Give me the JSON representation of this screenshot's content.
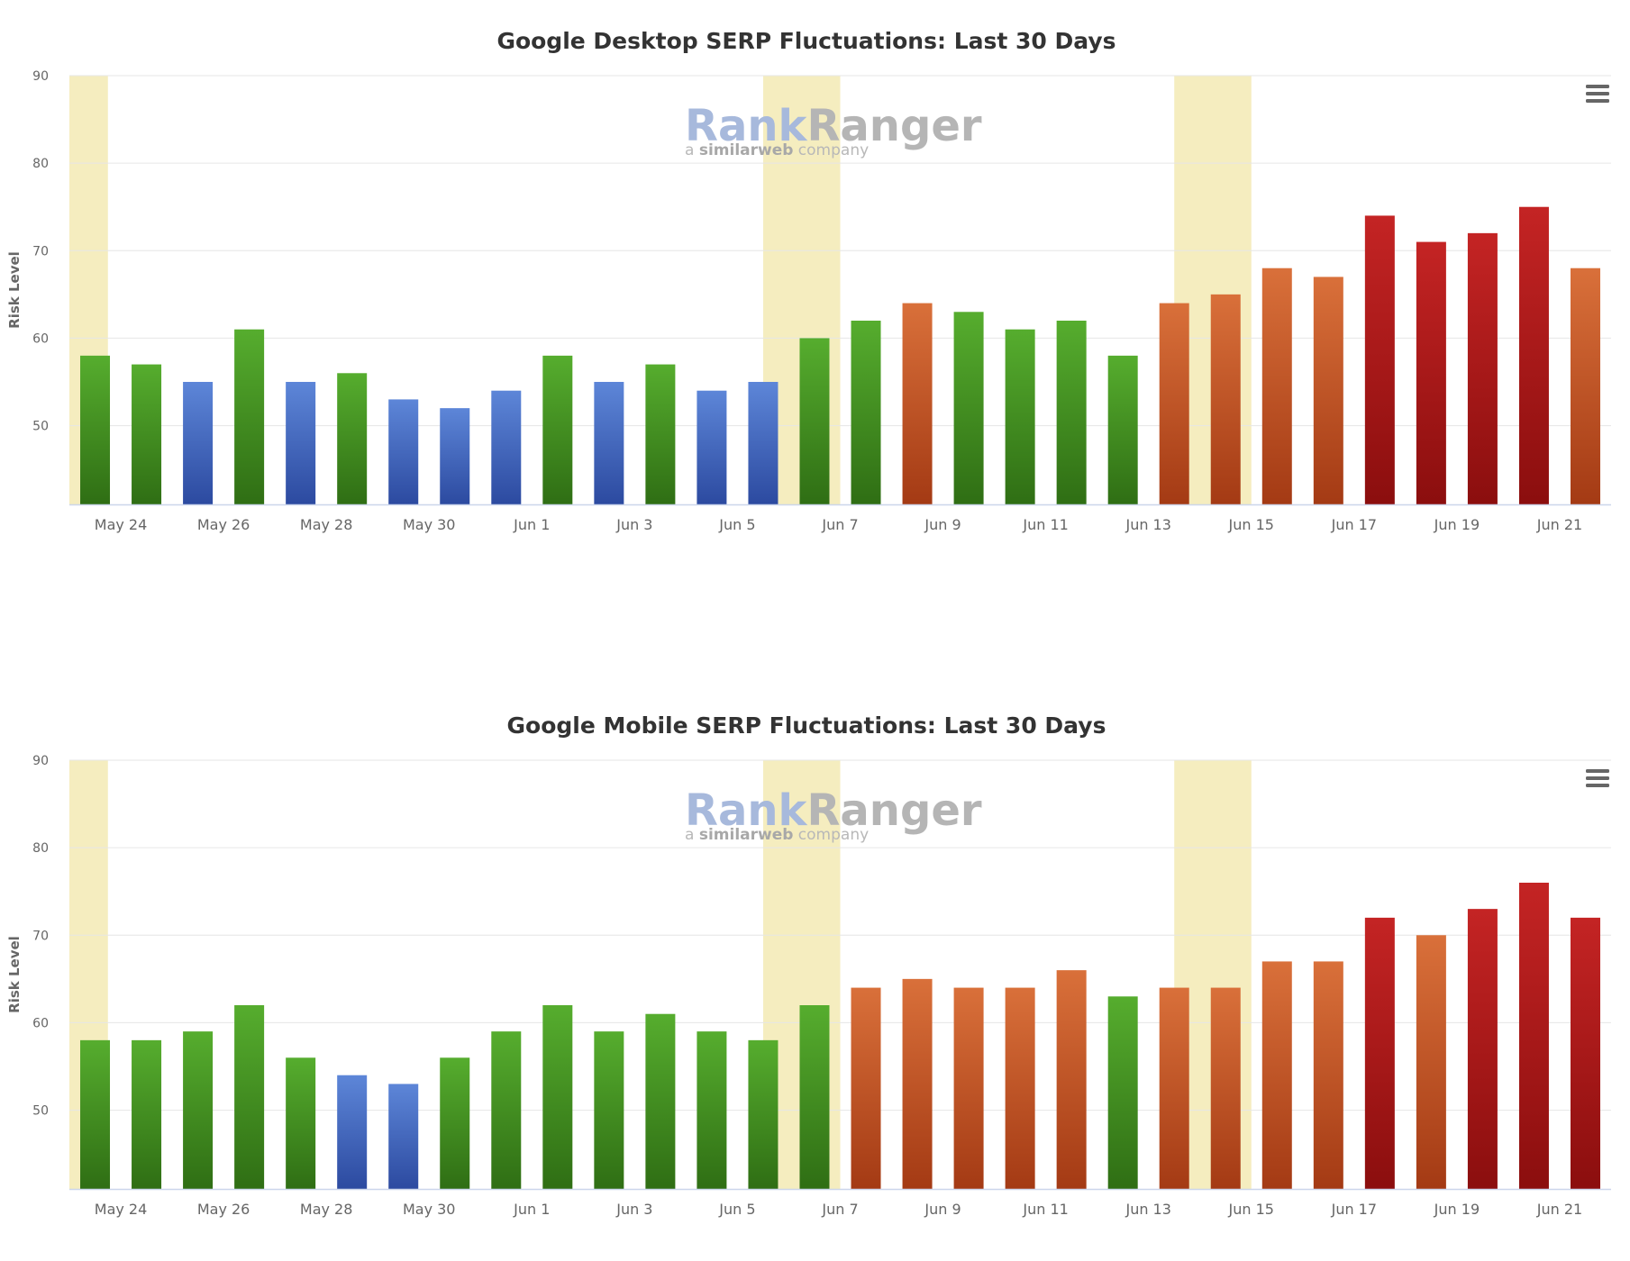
{
  "watermark": {
    "brand_left": "Rank",
    "brand_right": "Ranger",
    "tagline_prefix": "a ",
    "tagline_brand": "similarweb",
    "tagline_suffix": " company"
  },
  "colors": {
    "band": "#f5edbf",
    "grid": "#e6e6e6",
    "green": [
      "#56ad2e",
      "#2f6e14"
    ],
    "blue": [
      "#5d86d8",
      "#2c4aa0"
    ],
    "orange": [
      "#d9703a",
      "#a43a14"
    ],
    "red": [
      "#c42424",
      "#8b0e0e"
    ]
  },
  "chart_data": [
    {
      "type": "bar",
      "title": "Google Desktop SERP Fluctuations: Last 30 Days",
      "ylabel": "Risk Level",
      "xlabel": "",
      "ylim": [
        41,
        90
      ],
      "yticks": [
        50,
        60,
        70,
        80,
        90
      ],
      "grid": true,
      "legend": "none",
      "dates": [
        "May 23",
        "May 24",
        "May 25",
        "May 26",
        "May 27",
        "May 28",
        "May 29",
        "May 30",
        "May 31",
        "Jun 1",
        "Jun 2",
        "Jun 3",
        "Jun 4",
        "Jun 5",
        "Jun 6",
        "Jun 7",
        "Jun 8",
        "Jun 9",
        "Jun 10",
        "Jun 11",
        "Jun 12",
        "Jun 13",
        "Jun 14",
        "Jun 15",
        "Jun 16",
        "Jun 17",
        "Jun 18",
        "Jun 19",
        "Jun 20",
        "Jun 21"
      ],
      "x_tick_labels": [
        "May 24",
        "May 26",
        "May 28",
        "May 30",
        "Jun 1",
        "Jun 3",
        "Jun 5",
        "Jun 7",
        "Jun 9",
        "Jun 11",
        "Jun 13",
        "Jun 15",
        "Jun 17",
        "Jun 19",
        "Jun 21"
      ],
      "values": [
        58,
        57,
        55,
        61,
        55,
        56,
        53,
        52,
        54,
        58,
        55,
        57,
        54,
        55,
        60,
        62,
        64,
        63,
        61,
        62,
        58,
        64,
        65,
        68,
        67,
        74,
        71,
        72,
        75,
        68
      ],
      "colors": [
        "green",
        "green",
        "blue",
        "green",
        "blue",
        "green",
        "blue",
        "blue",
        "blue",
        "green",
        "blue",
        "green",
        "blue",
        "blue",
        "green",
        "green",
        "orange",
        "green",
        "green",
        "green",
        "green",
        "orange",
        "orange",
        "orange",
        "orange",
        "red",
        "red",
        "red",
        "red",
        "orange"
      ],
      "highlight_bands": [
        {
          "from": "May 23",
          "to": "May 23"
        },
        {
          "from": "Jun 5",
          "to": "Jun 6"
        },
        {
          "from": "Jun 13",
          "to": "Jun 14"
        }
      ]
    },
    {
      "type": "bar",
      "title": "Google Mobile SERP Fluctuations: Last 30 Days",
      "ylabel": "Risk Level",
      "xlabel": "",
      "ylim": [
        41,
        90
      ],
      "yticks": [
        50,
        60,
        70,
        80,
        90
      ],
      "grid": true,
      "legend": "none",
      "dates": [
        "May 23",
        "May 24",
        "May 25",
        "May 26",
        "May 27",
        "May 28",
        "May 29",
        "May 30",
        "May 31",
        "Jun 1",
        "Jun 2",
        "Jun 3",
        "Jun 4",
        "Jun 5",
        "Jun 6",
        "Jun 7",
        "Jun 8",
        "Jun 9",
        "Jun 10",
        "Jun 11",
        "Jun 12",
        "Jun 13",
        "Jun 14",
        "Jun 15",
        "Jun 16",
        "Jun 17",
        "Jun 18",
        "Jun 19",
        "Jun 20",
        "Jun 21"
      ],
      "x_tick_labels": [
        "May 24",
        "May 26",
        "May 28",
        "May 30",
        "Jun 1",
        "Jun 3",
        "Jun 5",
        "Jun 7",
        "Jun 9",
        "Jun 11",
        "Jun 13",
        "Jun 15",
        "Jun 17",
        "Jun 19",
        "Jun 21"
      ],
      "values": [
        58,
        58,
        59,
        62,
        56,
        54,
        53,
        56,
        59,
        62,
        59,
        61,
        59,
        58,
        62,
        64,
        65,
        64,
        64,
        66,
        63,
        64,
        64,
        67,
        67,
        72,
        70,
        73,
        76,
        72
      ],
      "colors": [
        "green",
        "green",
        "green",
        "green",
        "green",
        "blue",
        "blue",
        "green",
        "green",
        "green",
        "green",
        "green",
        "green",
        "green",
        "green",
        "orange",
        "orange",
        "orange",
        "orange",
        "orange",
        "green",
        "orange",
        "orange",
        "orange",
        "orange",
        "red",
        "orange",
        "red",
        "red",
        "red"
      ],
      "highlight_bands": [
        {
          "from": "May 23",
          "to": "May 23"
        },
        {
          "from": "Jun 5",
          "to": "Jun 6"
        },
        {
          "from": "Jun 13",
          "to": "Jun 14"
        }
      ]
    }
  ]
}
